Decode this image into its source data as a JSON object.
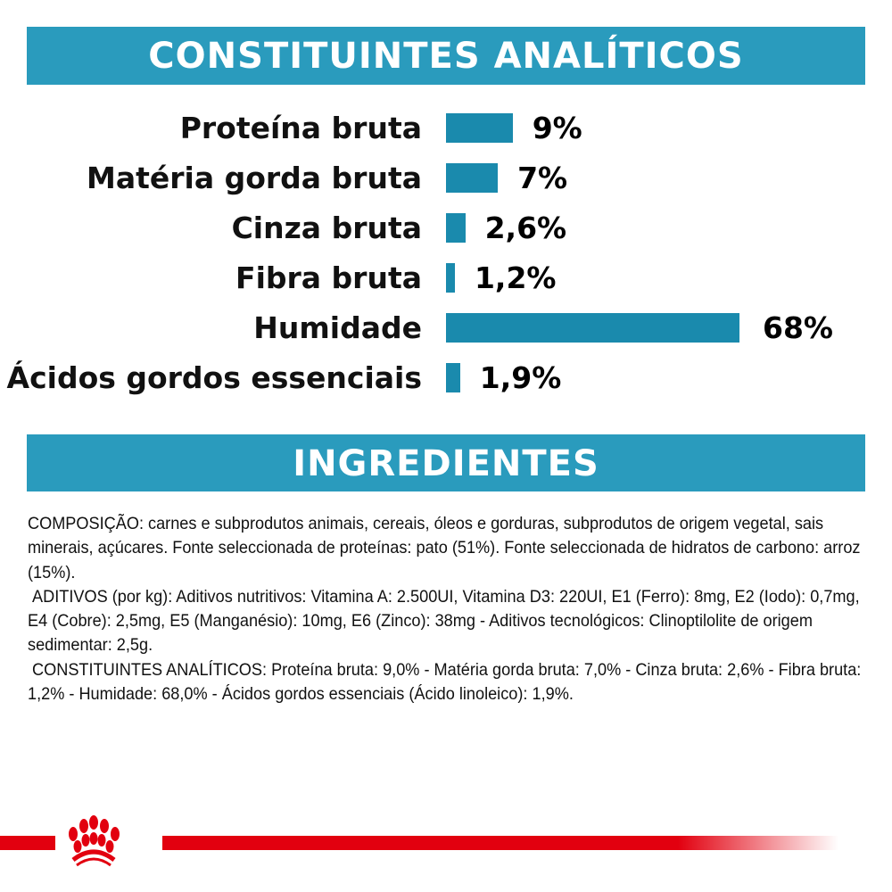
{
  "header_analytic": "CONSTITUINTES ANALÍTICOS",
  "header_ingredients": "INGREDIENTES",
  "chart_data": {
    "type": "bar",
    "orientation": "horizontal",
    "categories": [
      "Proteína bruta",
      "Matéria gorda bruta",
      "Cinza bruta",
      "Fibra bruta",
      "Humidade",
      "Ácidos gordos essenciais"
    ],
    "values": [
      9,
      7,
      2.6,
      1.2,
      68,
      1.9
    ],
    "value_labels": [
      "9%",
      "7%",
      "2,6%",
      "1,2%",
      "68%",
      "1,9%"
    ],
    "unit": "%",
    "bar_color": "#1a8aad",
    "grid": false
  },
  "ingredients": [
    "COMPOSIÇÃO: carnes e subprodutos animais, cereais, óleos e gorduras, subprodutos de origem vegetal, sais minerais, açúcares. Fonte seleccionada de proteínas: pato (51%). Fonte seleccionada de hidratos de carbono: arroz (15%).",
    " ADITIVOS (por kg): Aditivos nutritivos: Vitamina A: 2.500UI, Vitamina D3: 220UI, E1 (Ferro): 8mg, E2 (Iodo): 0,7mg, E4 (Cobre): 2,5mg, E5 (Manganésio): 10mg, E6 (Zinco): 38mg - Aditivos tecnológicos: Clinoptilolite de origem sedimentar: 2,5g.",
    " CONSTITUINTES ANALÍTICOS: Proteína bruta: 9,0% - Matéria gorda bruta: 7,0% - Cinza bruta: 2,6% - Fibra bruta: 1,2% - Humidade: 68,0% - Ácidos gordos essenciais (Ácido linoleico): 1,9%."
  ],
  "colors": {
    "band": "#2a9bbd",
    "brand_red": "#e2000f"
  },
  "logo": "Royal Canin crown logo"
}
